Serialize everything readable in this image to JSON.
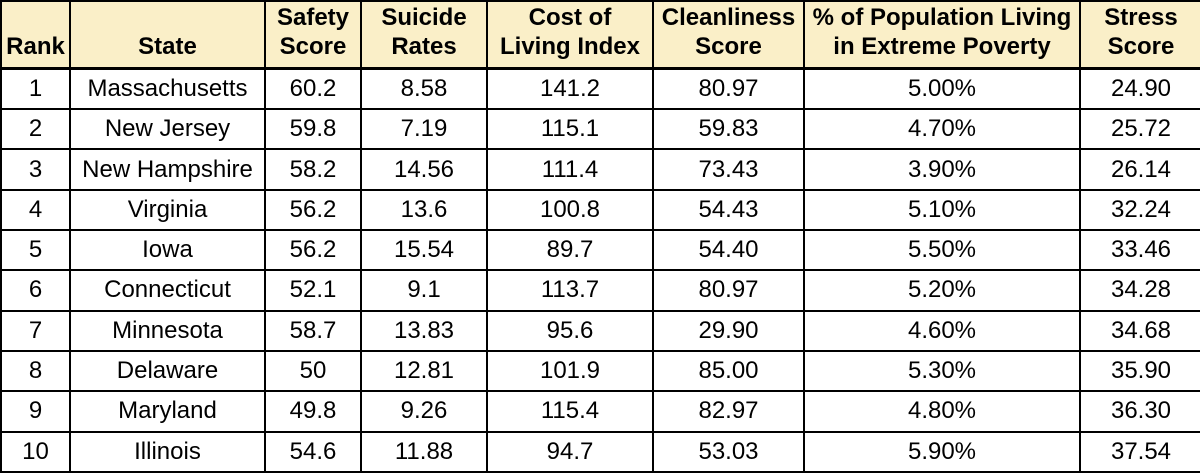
{
  "chart_data": {
    "type": "table",
    "columns": [
      {
        "key": "rank",
        "label": "Rank"
      },
      {
        "key": "state",
        "label": "State"
      },
      {
        "key": "safety-score",
        "label": "Safety\nScore"
      },
      {
        "key": "suicide-rates",
        "label": "Suicide\nRates"
      },
      {
        "key": "cost-of-living-index",
        "label": "Cost of\nLiving Index"
      },
      {
        "key": "cleanliness-score",
        "label": "Cleanliness\nScore"
      },
      {
        "key": "extreme-poverty-pct",
        "label": "% of Population Living\nin Extreme Poverty"
      },
      {
        "key": "stress-score",
        "label": "Stress\nScore"
      }
    ],
    "rows": [
      [
        "1",
        "Massachusetts",
        "60.2",
        "8.58",
        "141.2",
        "80.97",
        "5.00%",
        "24.90"
      ],
      [
        "2",
        "New Jersey",
        "59.8",
        "7.19",
        "115.1",
        "59.83",
        "4.70%",
        "25.72"
      ],
      [
        "3",
        "New Hampshire",
        "58.2",
        "14.56",
        "111.4",
        "73.43",
        "3.90%",
        "26.14"
      ],
      [
        "4",
        "Virginia",
        "56.2",
        "13.6",
        "100.8",
        "54.43",
        "5.10%",
        "32.24"
      ],
      [
        "5",
        "Iowa",
        "56.2",
        "15.54",
        "89.7",
        "54.40",
        "5.50%",
        "33.46"
      ],
      [
        "6",
        "Connecticut",
        "52.1",
        "9.1",
        "113.7",
        "80.97",
        "5.20%",
        "34.28"
      ],
      [
        "7",
        "Minnesota",
        "58.7",
        "13.83",
        "95.6",
        "29.90",
        "4.60%",
        "34.68"
      ],
      [
        "8",
        "Delaware",
        "50",
        "12.81",
        "101.9",
        "85.00",
        "5.30%",
        "35.90"
      ],
      [
        "9",
        "Maryland",
        "49.8",
        "9.26",
        "115.4",
        "82.97",
        "4.80%",
        "36.30"
      ],
      [
        "10",
        "Illinois",
        "54.6",
        "11.88",
        "94.7",
        "53.03",
        "5.90%",
        "37.54"
      ]
    ]
  },
  "colors": {
    "header_bg": "#faefc8",
    "border": "#000000",
    "text": "#000000",
    "row_bg": "#ffffff"
  }
}
